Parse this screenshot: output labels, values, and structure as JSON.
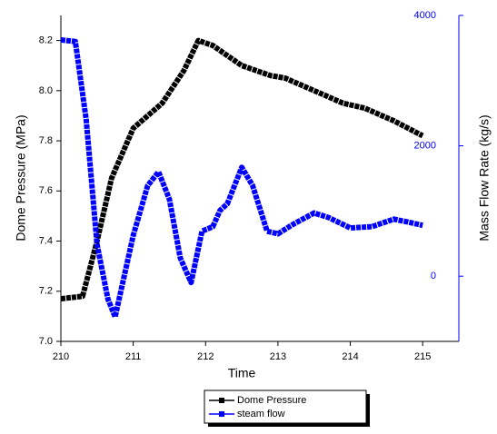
{
  "chart_data": {
    "type": "line",
    "x_label": "Time",
    "y_label": "Dome Pressure (MPa)",
    "y2_label": "Mass Flow Rate (kg/s)",
    "xlim": [
      210,
      215.5
    ],
    "xticks": [
      210,
      211,
      212,
      213,
      214,
      215
    ],
    "ylim": [
      7.0,
      8.3
    ],
    "yticks": [
      {
        "value": 7.0,
        "label": "7.0"
      },
      7.2,
      7.4,
      7.6,
      7.8,
      {
        "value": 8.0,
        "label": "8.0"
      },
      8.2
    ],
    "y2lim": [
      -1000,
      4000
    ],
    "y2ticks": [
      0,
      2000,
      4000
    ],
    "legend": "bottom",
    "series": [
      {
        "name": "Dome Pressure",
        "color": "#000000",
        "x": [
          210,
          210.3,
          210.5,
          210.7,
          211,
          211.4,
          211.7,
          211.9,
          212.1,
          212.5,
          212.9,
          213.1,
          213.5,
          213.9,
          214.2,
          214.6,
          215
        ],
        "values": [
          7.17,
          7.18,
          7.4,
          7.65,
          7.85,
          7.95,
          8.08,
          8.2,
          8.18,
          8.1,
          8.06,
          8.05,
          8.0,
          7.95,
          7.93,
          7.88,
          7.82
        ]
      },
      {
        "name": "steam flow",
        "color": "#0000ff",
        "axis": "y2",
        "x": [
          210,
          210.2,
          210.35,
          210.5,
          210.65,
          210.75,
          211,
          211.2,
          211.35,
          211.5,
          211.65,
          211.8,
          211.95,
          212.1,
          212.2,
          212.3,
          212.5,
          212.65,
          212.85,
          213,
          213.2,
          213.5,
          213.7,
          214,
          214.3,
          214.6,
          214.8,
          215
        ],
        "values": [
          3625,
          3600,
          2400,
          486,
          -350,
          -625,
          625,
          1390,
          1600,
          1180,
          280,
          -97,
          690,
          760,
          1010,
          1110,
          1670,
          1390,
          690,
          650,
          790,
          970,
          900,
          740,
          760,
          875,
          830,
          780
        ]
      }
    ]
  }
}
